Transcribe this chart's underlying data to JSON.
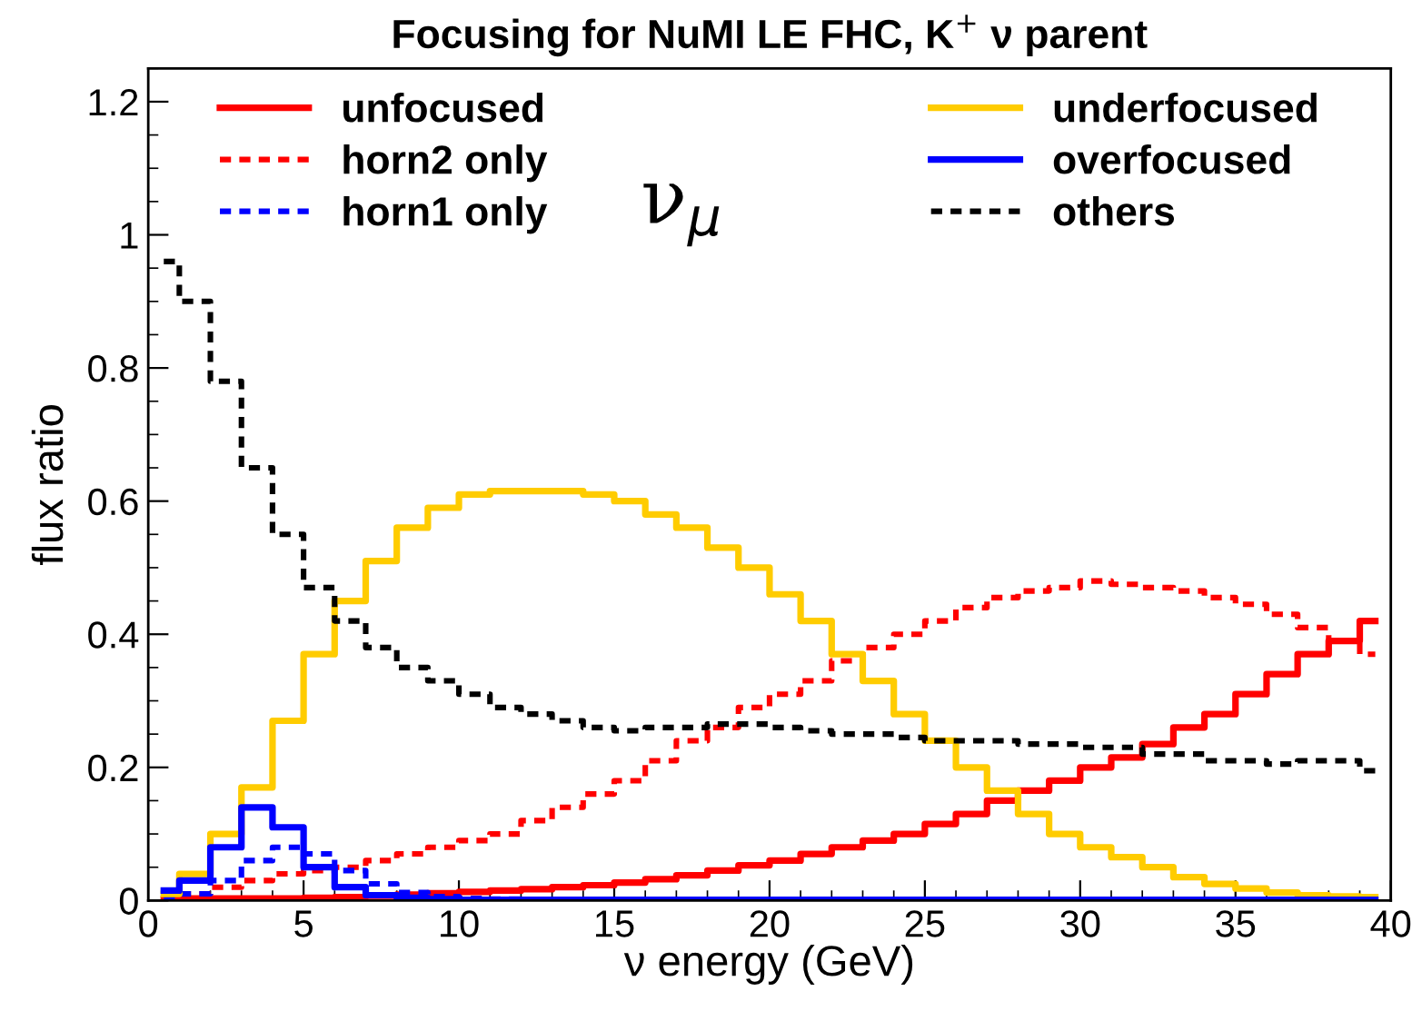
{
  "chart_data": {
    "type": "step",
    "title": "Focusing for NuMI LE FHC, K$^{+}$ ν parent",
    "xlabel": "ν energy (GeV)",
    "ylabel": "flux ratio",
    "annotations": [
      "ν$_{μ}$"
    ],
    "x": [
      0.5,
      1.5,
      2.5,
      3.5,
      4.5,
      5.5,
      6.5,
      7.5,
      8.5,
      9.5,
      10.5,
      11.5,
      12.5,
      13.5,
      14.5,
      15.5,
      16.5,
      17.5,
      18.5,
      19.5,
      20.5,
      21.5,
      22.5,
      23.5,
      24.5,
      25.5,
      26.5,
      27.5,
      28.5,
      29.5,
      30.5,
      31.5,
      32.5,
      33.5,
      34.5,
      35.5,
      36.5,
      37.5,
      38.5,
      39.5
    ],
    "series": [
      {
        "name": "unfocused",
        "color": "#ff0000",
        "line_style": "solid",
        "values": [
          0.002,
          0.003,
          0.003,
          0.003,
          0.003,
          0.004,
          0.005,
          0.007,
          0.009,
          0.011,
          0.013,
          0.015,
          0.017,
          0.02,
          0.023,
          0.027,
          0.032,
          0.038,
          0.045,
          0.053,
          0.06,
          0.07,
          0.08,
          0.09,
          0.1,
          0.115,
          0.13,
          0.15,
          0.165,
          0.18,
          0.2,
          0.215,
          0.235,
          0.26,
          0.28,
          0.31,
          0.34,
          0.37,
          0.39,
          0.42
        ]
      },
      {
        "name": "horn2 only",
        "color": "#ff0000",
        "line_style": "dashed",
        "values": [
          0.005,
          0.01,
          0.02,
          0.03,
          0.04,
          0.045,
          0.05,
          0.06,
          0.07,
          0.08,
          0.09,
          0.1,
          0.12,
          0.14,
          0.16,
          0.18,
          0.21,
          0.24,
          0.26,
          0.29,
          0.31,
          0.33,
          0.36,
          0.38,
          0.4,
          0.42,
          0.44,
          0.455,
          0.465,
          0.47,
          0.48,
          0.475,
          0.47,
          0.465,
          0.455,
          0.445,
          0.43,
          0.41,
          0.39,
          0.37
        ]
      },
      {
        "name": "horn1 only",
        "color": "#0000ff",
        "line_style": "dashed",
        "values": [
          0.005,
          0.01,
          0.03,
          0.06,
          0.08,
          0.07,
          0.045,
          0.025,
          0.012,
          0.006,
          0.003,
          0.002,
          0.001,
          0.001,
          0.001,
          0.001,
          0.001,
          0.001,
          0.001,
          0.001,
          0.001,
          0.001,
          0.001,
          0.001,
          0.001,
          0.001,
          0.001,
          0.001,
          0.001,
          0.001,
          0.001,
          0.001,
          0.001,
          0.001,
          0.001,
          0.001,
          0.001,
          0.001,
          0.001,
          0.001
        ]
      },
      {
        "name": "underfocused",
        "color": "#ffcc00",
        "line_style": "solid",
        "values": [
          0.01,
          0.04,
          0.1,
          0.17,
          0.27,
          0.37,
          0.45,
          0.51,
          0.56,
          0.59,
          0.61,
          0.615,
          0.615,
          0.615,
          0.61,
          0.6,
          0.58,
          0.56,
          0.53,
          0.5,
          0.46,
          0.42,
          0.37,
          0.33,
          0.28,
          0.24,
          0.2,
          0.165,
          0.13,
          0.1,
          0.08,
          0.065,
          0.05,
          0.035,
          0.025,
          0.018,
          0.012,
          0.008,
          0.006,
          0.005
        ]
      },
      {
        "name": "overfocused",
        "color": "#0000ff",
        "line_style": "solid",
        "values": [
          0.015,
          0.03,
          0.08,
          0.14,
          0.11,
          0.05,
          0.02,
          0.008,
          0.004,
          0.002,
          0.001,
          0.001,
          0.001,
          0.001,
          0.001,
          0.001,
          0.001,
          0.001,
          0.001,
          0.001,
          0.001,
          0.001,
          0.001,
          0.001,
          0.001,
          0.001,
          0.001,
          0.001,
          0.001,
          0.001,
          0.001,
          0.001,
          0.001,
          0.001,
          0.001,
          0.001,
          0.001,
          0.001,
          0.001,
          0.001
        ]
      },
      {
        "name": "others",
        "color": "#000000",
        "line_style": "dashed",
        "values": [
          0.96,
          0.9,
          0.78,
          0.65,
          0.55,
          0.47,
          0.42,
          0.38,
          0.35,
          0.33,
          0.31,
          0.29,
          0.28,
          0.27,
          0.26,
          0.255,
          0.26,
          0.26,
          0.265,
          0.265,
          0.26,
          0.255,
          0.25,
          0.25,
          0.245,
          0.24,
          0.24,
          0.24,
          0.235,
          0.235,
          0.23,
          0.23,
          0.22,
          0.22,
          0.21,
          0.21,
          0.205,
          0.21,
          0.21,
          0.195
        ]
      }
    ],
    "xlim": [
      0,
      40
    ],
    "ylim": [
      0,
      1.25
    ],
    "xticks": [
      0,
      5,
      10,
      15,
      20,
      25,
      30,
      35,
      40
    ],
    "yticks": [
      0,
      0.2,
      0.4,
      0.6,
      0.8,
      1,
      1.2
    ],
    "legend": "top",
    "grid": false
  }
}
